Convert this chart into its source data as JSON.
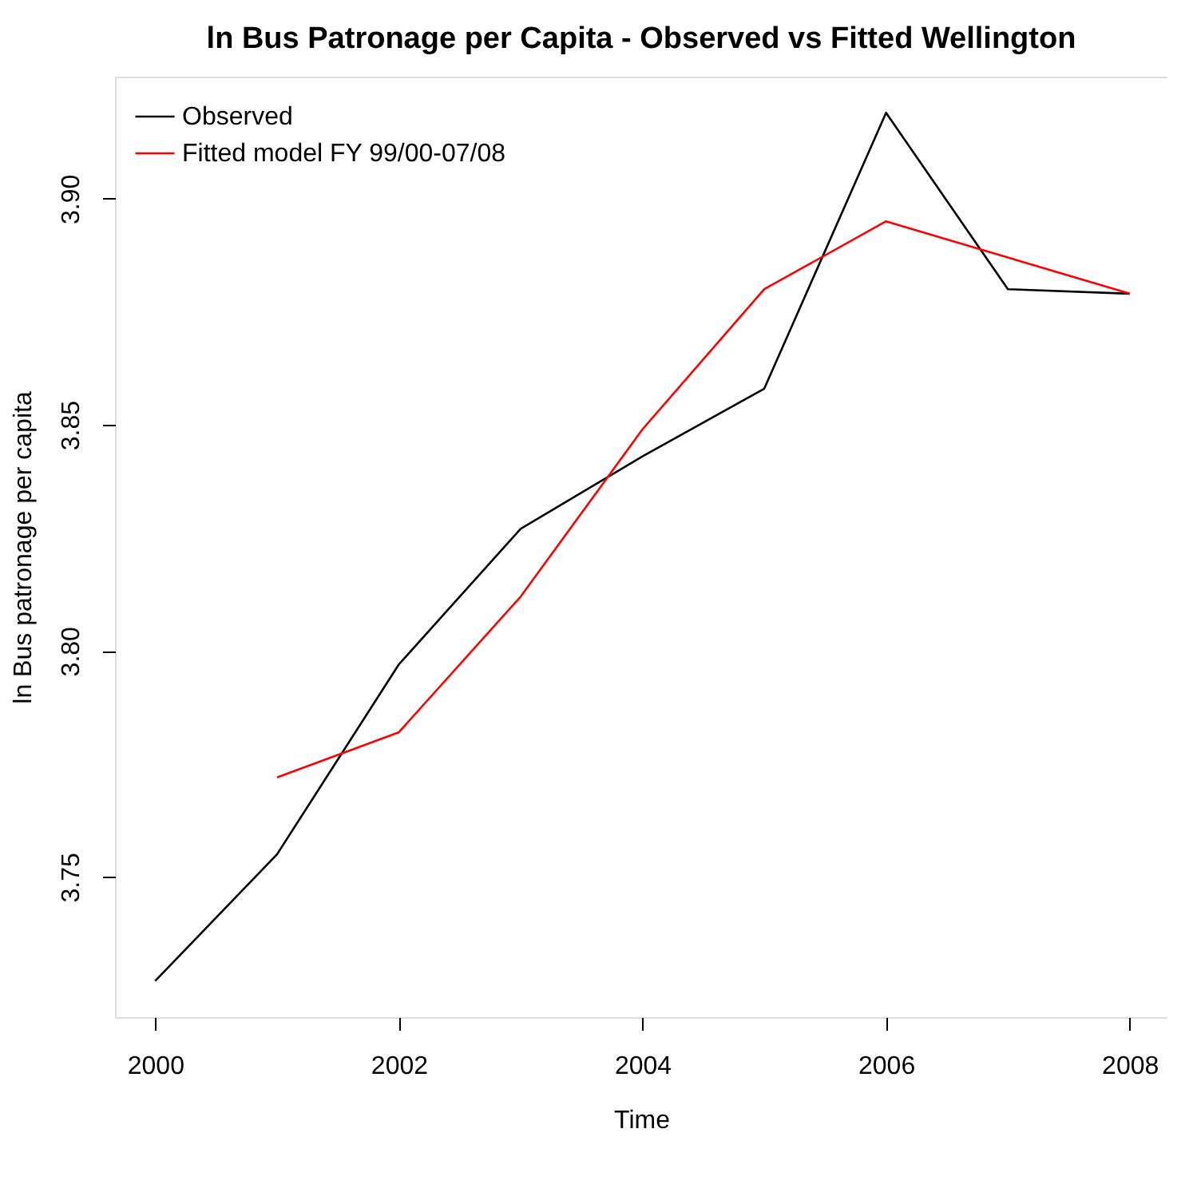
{
  "chart_data": {
    "type": "line",
    "title": "ln Bus Patronage per Capita - Observed vs Fitted Wellington",
    "xlabel": "Time",
    "ylabel": "ln Bus patronage per capita",
    "x": [
      2000,
      2001,
      2002,
      2003,
      2004,
      2005,
      2006,
      2007,
      2008
    ],
    "series": [
      {
        "name": "Observed",
        "color": "#000000",
        "values": [
          3.727,
          3.755,
          3.797,
          3.827,
          3.843,
          3.858,
          3.919,
          3.88,
          3.879
        ]
      },
      {
        "name": "Fitted model FY 99/00-07/08",
        "color": "#ff0000",
        "values": [
          null,
          3.772,
          3.782,
          3.812,
          3.849,
          3.88,
          3.895,
          3.887,
          3.879
        ]
      }
    ],
    "xlim": [
      1999.67,
      2008.31
    ],
    "ylim": [
      3.719,
      3.927
    ],
    "xticks": [
      2000,
      2002,
      2004,
      2006,
      2008
    ],
    "yticks": [
      {
        "value": 3.75,
        "label": "3.75"
      },
      {
        "value": 3.8,
        "label": "3.80"
      },
      {
        "value": 3.85,
        "label": "3.85"
      },
      {
        "value": 3.9,
        "label": "3.90"
      }
    ],
    "grid": false,
    "legend": "top left",
    "marker": "none",
    "line_style": "solid"
  }
}
